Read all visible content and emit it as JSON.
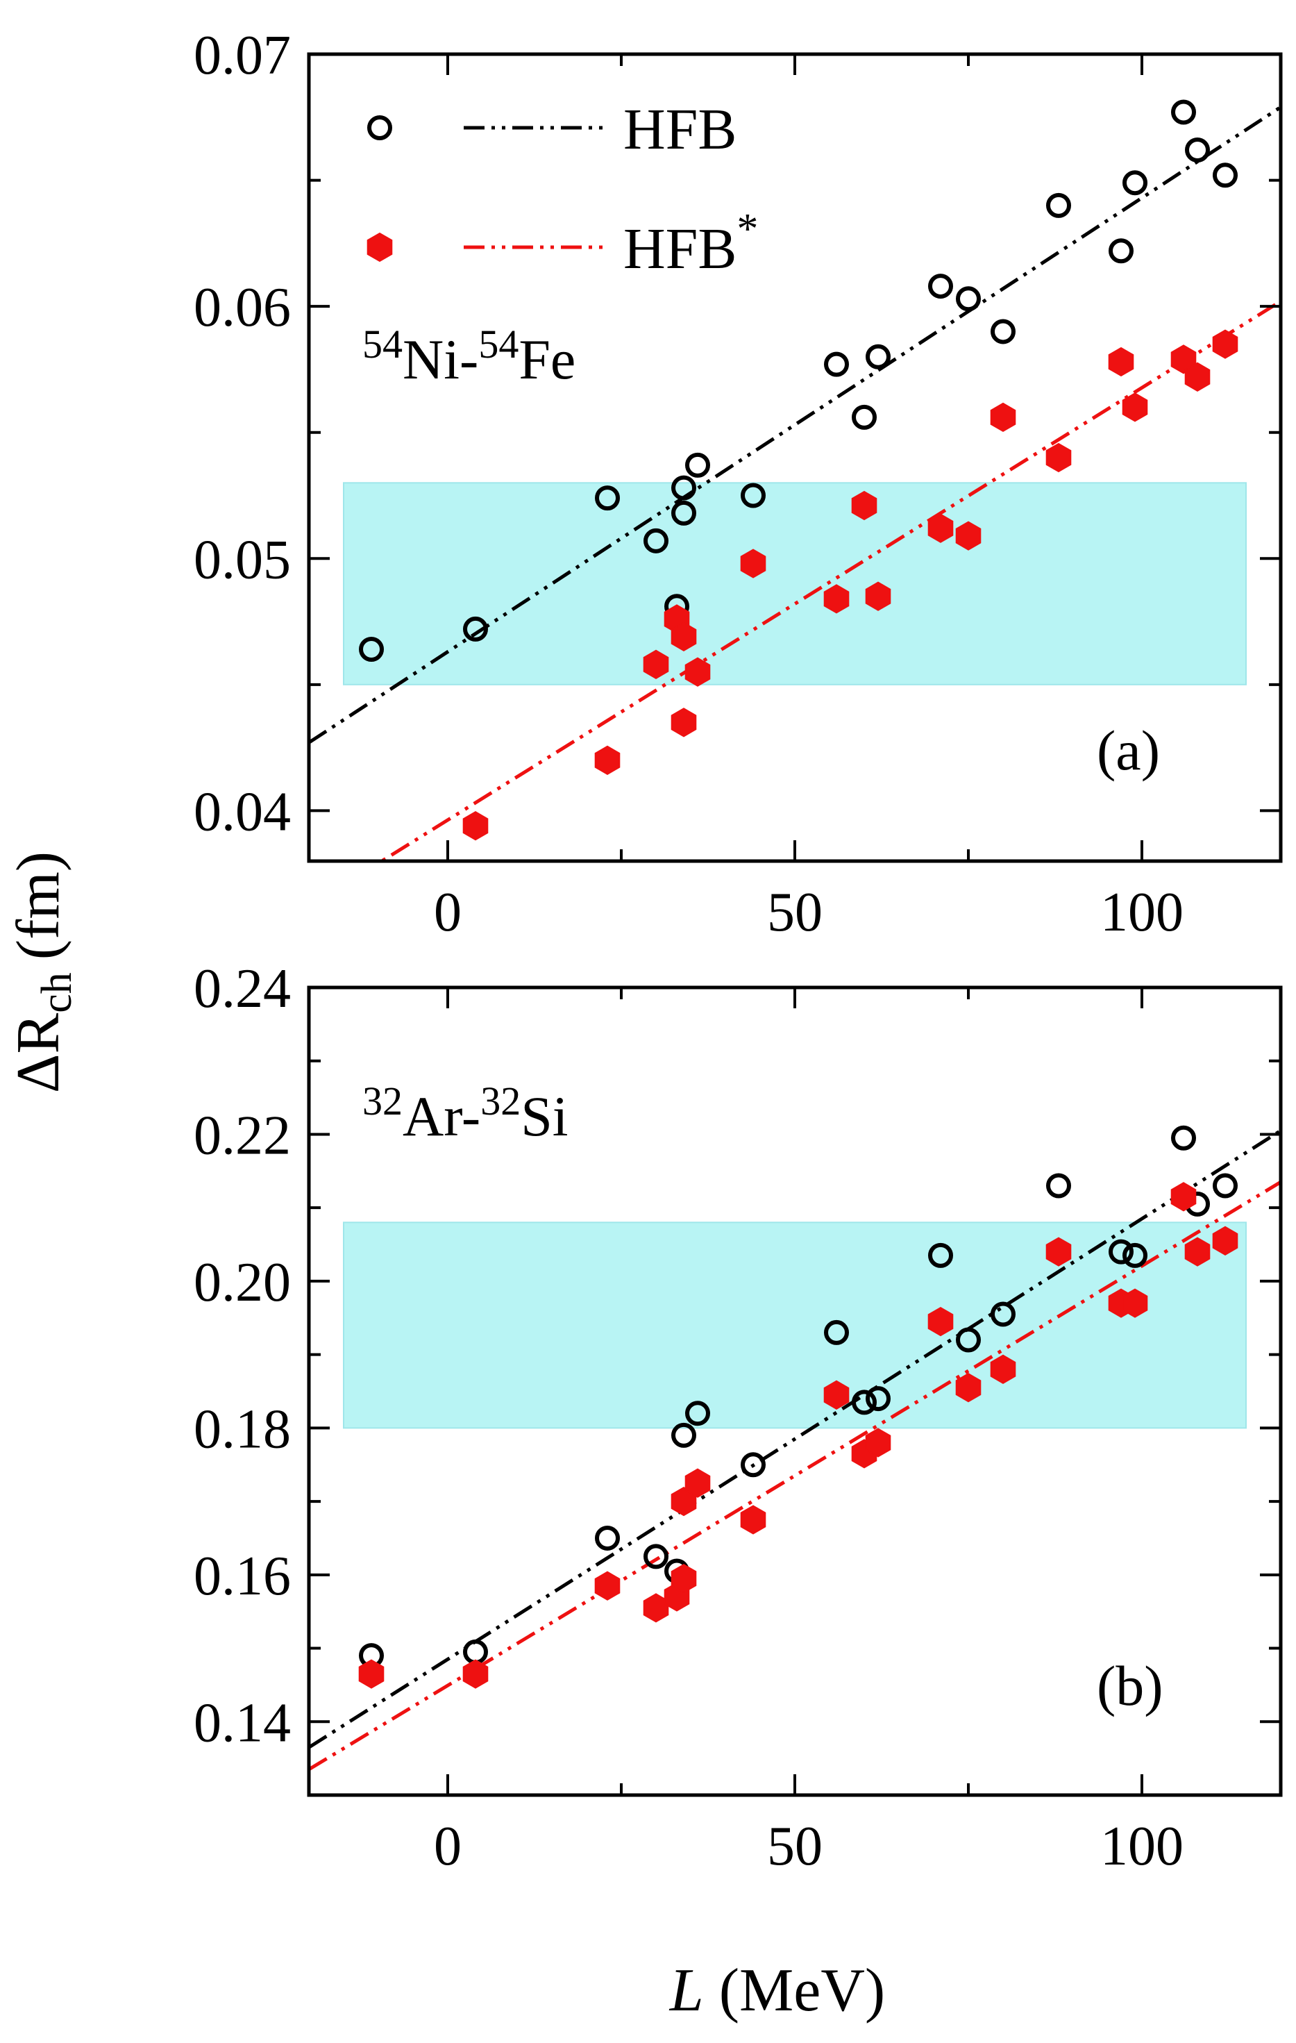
{
  "colors": {
    "hfb": "#000000",
    "hfb_star": "#ee1111",
    "band": "#b8f4f4"
  },
  "legend": [
    {
      "key": "HFB",
      "label": "HFB",
      "sup": "",
      "marker": "open-circle"
    },
    {
      "key": "HFB_star",
      "label": "HFB",
      "sup": "*",
      "marker": "filled-hexagon"
    }
  ],
  "axes": {
    "ylabel_main": "ΔR",
    "ylabel_sub": "ch",
    "ylabel_unit": "(fm)",
    "xlabel_var": "L",
    "xlabel_unit": "(MeV)"
  },
  "chart_data": [
    {
      "type": "scatter",
      "panel_label": "(a)",
      "nuclei": {
        "a_mass": "54",
        "a_el": "Ni",
        "sep": "-",
        "b_mass": "54",
        "b_el": "Fe"
      },
      "xlim": [
        -20,
        120
      ],
      "ylim": [
        0.038,
        0.07
      ],
      "xticks": [
        0,
        50,
        100
      ],
      "xtick_labels": [
        "0",
        "50",
        "100"
      ],
      "yticks": [
        0.04,
        0.05,
        0.06,
        0.07
      ],
      "ytick_labels": [
        "0.04",
        "0.05",
        "0.06",
        "0.07"
      ],
      "band": [
        0.045,
        0.053
      ],
      "band_x": [
        -15,
        115
      ],
      "series": [
        {
          "name": "HFB",
          "x": [
            -11,
            4,
            23,
            30,
            33,
            34,
            34,
            36,
            44,
            56,
            60,
            62,
            71,
            75,
            80,
            88,
            97,
            99,
            106,
            108,
            112
          ],
          "y": [
            0.0464,
            0.0472,
            0.0524,
            0.0507,
            0.0481,
            0.0528,
            0.0518,
            0.0537,
            0.0525,
            0.0577,
            0.0556,
            0.058,
            0.0608,
            0.0603,
            0.059,
            0.064,
            0.0622,
            0.0649,
            0.0677,
            0.0662,
            0.0652
          ],
          "fit": {
            "x": [
              -20,
              120
            ],
            "y": [
              0.0427,
              0.0679
            ]
          }
        },
        {
          "name": "HFB*",
          "x": [
            4,
            23,
            30,
            33,
            34,
            34,
            36,
            44,
            56,
            60,
            62,
            71,
            75,
            80,
            88,
            97,
            99,
            106,
            108,
            112
          ],
          "y": [
            0.0394,
            0.042,
            0.0458,
            0.0476,
            0.0469,
            0.0435,
            0.0455,
            0.0498,
            0.0484,
            0.0521,
            0.0485,
            0.0512,
            0.0509,
            0.0556,
            0.054,
            0.0578,
            0.056,
            0.0579,
            0.0572,
            0.0585
          ],
          "fit": {
            "x": [
              -20,
              120
            ],
            "y": [
              0.0362,
              0.0602
            ]
          }
        }
      ]
    },
    {
      "type": "scatter",
      "panel_label": "(b)",
      "nuclei": {
        "a_mass": "32",
        "a_el": "Ar",
        "sep": "-",
        "b_mass": "32",
        "b_el": "Si"
      },
      "xlim": [
        -20,
        120
      ],
      "ylim": [
        0.13,
        0.24
      ],
      "xticks": [
        0,
        50,
        100
      ],
      "xtick_labels": [
        "0",
        "50",
        "100"
      ],
      "yticks": [
        0.14,
        0.16,
        0.18,
        0.2,
        0.22,
        0.24
      ],
      "ytick_labels": [
        "0.14",
        "0.16",
        "0.18",
        "0.20",
        "0.22",
        "0.24"
      ],
      "band": [
        0.18,
        0.208
      ],
      "band_x": [
        -15,
        115
      ],
      "series": [
        {
          "name": "HFB",
          "x": [
            -11,
            4,
            23,
            30,
            33,
            34,
            36,
            44,
            56,
            60,
            62,
            71,
            75,
            80,
            88,
            97,
            99,
            106,
            108,
            112
          ],
          "y": [
            0.149,
            0.1495,
            0.165,
            0.1625,
            0.1605,
            0.179,
            0.182,
            0.175,
            0.193,
            0.1835,
            0.184,
            0.2035,
            0.192,
            0.1955,
            0.213,
            0.204,
            0.2035,
            0.2195,
            0.2105,
            0.213
          ],
          "fit": {
            "x": [
              -20,
              120
            ],
            "y": [
              0.1365,
              0.2205
            ]
          }
        },
        {
          "name": "HFB*",
          "x": [
            -11,
            4,
            23,
            30,
            33,
            34,
            34,
            36,
            44,
            56,
            60,
            62,
            71,
            75,
            80,
            88,
            97,
            99,
            106,
            108,
            112
          ],
          "y": [
            0.1465,
            0.1465,
            0.1585,
            0.1555,
            0.157,
            0.1595,
            0.17,
            0.1725,
            0.1675,
            0.1845,
            0.1765,
            0.178,
            0.1945,
            0.1855,
            0.188,
            0.204,
            0.197,
            0.197,
            0.2115,
            0.204,
            0.2055
          ],
          "fit": {
            "x": [
              -20,
              120
            ],
            "y": [
              0.1335,
              0.2135
            ]
          }
        }
      ]
    }
  ]
}
